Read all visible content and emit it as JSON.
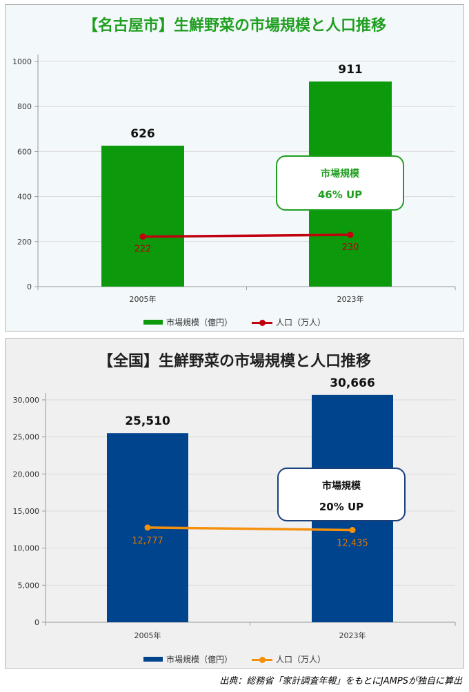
{
  "source": "出典：総務省「家計調査年報」をもとにJAMPSが独自に算出",
  "charts": [
    {
      "panel_title": "【名古屋市】生鮮野菜の市場規模と人口推移",
      "callout": {
        "label": "市場規模",
        "value": "46% UP"
      },
      "legend": {
        "bar": "市場規模（億円）",
        "line": "人口（万人）"
      },
      "colors": {
        "bar": "#0c9a0c",
        "line": "#c0000e",
        "line_label": "#b00010"
      },
      "chart_data": {
        "type": "bar",
        "categories": [
          "2005年",
          "2023年"
        ],
        "bar_values": [
          626,
          911
        ],
        "bar_labels": [
          "626",
          "911"
        ],
        "line_values": [
          222,
          230
        ],
        "line_labels": [
          "222",
          "230"
        ],
        "ylim": [
          0,
          1000
        ],
        "yticks": [
          "0",
          "200",
          "400",
          "600",
          "800",
          "1000"
        ],
        "ytick_values": [
          0,
          200,
          400,
          600,
          800,
          1000
        ],
        "grid": true,
        "legend_position": "bottom"
      }
    },
    {
      "panel_title": "【全国】生鮮野菜の市場規模と人口推移",
      "callout": {
        "label": "市場規模",
        "value": "20% UP"
      },
      "legend": {
        "bar": "市場規模（億円）",
        "line": "人口（万人）"
      },
      "colors": {
        "bar": "#00448e",
        "line": "#f5900c",
        "line_label": "#e07800"
      },
      "chart_data": {
        "type": "bar",
        "categories": [
          "2005年",
          "2023年"
        ],
        "bar_values": [
          25510,
          30666
        ],
        "bar_labels": [
          "25,510",
          "30,666"
        ],
        "line_values": [
          12777,
          12435
        ],
        "line_labels": [
          "12,777",
          "12,435"
        ],
        "ylim": [
          0,
          30000
        ],
        "yticks": [
          "0",
          "5,000",
          "10,000",
          "15,000",
          "20,000",
          "25,000",
          "30,000"
        ],
        "ytick_values": [
          0,
          5000,
          10000,
          15000,
          20000,
          25000,
          30000
        ],
        "grid": true,
        "legend_position": "bottom"
      }
    }
  ]
}
